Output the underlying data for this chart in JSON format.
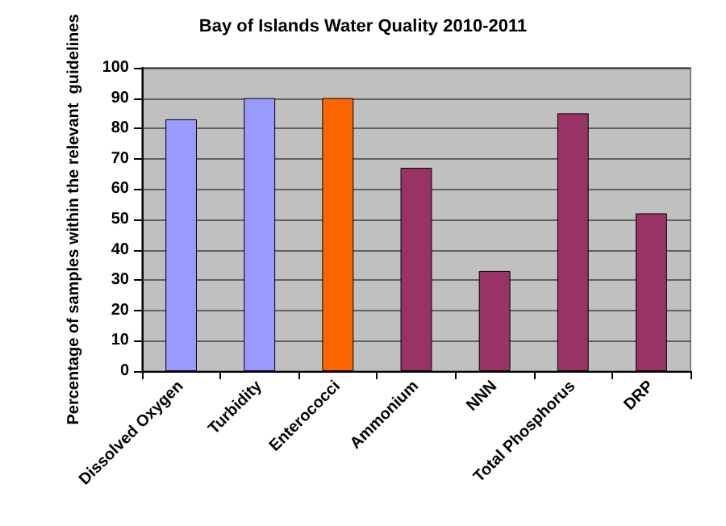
{
  "chart_data": {
    "type": "bar",
    "title": "Bay of Islands Water Quality 2010-2011",
    "ylabel": "Percentage of samples within the relevant  guidelines",
    "categories": [
      "Dissolved Oxygen",
      "Turbidity",
      "Enterococci",
      "Ammonium",
      "NNN",
      "Total Phosphorus",
      "DRP"
    ],
    "values": [
      83,
      90,
      90,
      67,
      33,
      85,
      52
    ],
    "colors": [
      "#9999ff",
      "#9999ff",
      "#ff6600",
      "#993366",
      "#993366",
      "#993366",
      "#993366"
    ],
    "ylim": [
      0,
      100
    ],
    "yticks": [
      0,
      10,
      20,
      30,
      40,
      50,
      60,
      70,
      80,
      90,
      100
    ],
    "grid": "y"
  }
}
